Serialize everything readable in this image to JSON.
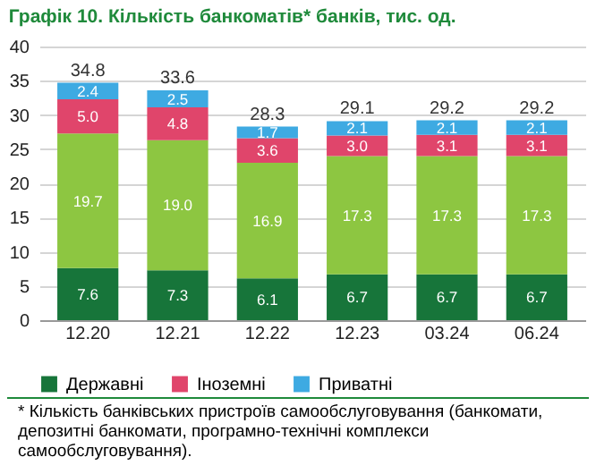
{
  "chart_data": {
    "type": "bar",
    "title": "Графік 10. Кількість банкоматів* банків, тис. од.",
    "categories": [
      "12.20",
      "12.21",
      "12.22",
      "12.23",
      "03.24",
      "06.24"
    ],
    "stacked": true,
    "series": [
      {
        "name": "Державні",
        "color": "#17753a",
        "values": [
          7.6,
          7.3,
          6.1,
          6.7,
          6.7,
          6.7
        ],
        "value_labels": [
          "7.6",
          "7.3",
          "6.1",
          "6.7",
          "6.7",
          "6.7"
        ]
      },
      {
        "color": "#8dc641",
        "values": [
          19.7,
          19.0,
          16.9,
          17.3,
          17.3,
          17.3
        ],
        "value_labels": [
          "19.7",
          "19.0",
          "16.9",
          "17.3",
          "17.3",
          "17.3"
        ]
      },
      {
        "name": "Іноземні",
        "color": "#e0456b",
        "values": [
          5.0,
          4.8,
          3.6,
          3.0,
          3.1,
          3.1
        ],
        "value_labels": [
          "5.0",
          "4.8",
          "3.6",
          "3.0",
          "3.1",
          "3.1"
        ]
      },
      {
        "name": "Приватні",
        "color": "#3eaae2",
        "values": [
          2.4,
          2.5,
          1.7,
          2.1,
          2.1,
          2.1
        ],
        "value_labels": [
          "2.4",
          "2.5",
          "1.7",
          "2.1",
          "2.1",
          "2.1"
        ]
      }
    ],
    "totals": [
      "34.8",
      "33.6",
      "28.3",
      "29.1",
      "29.2",
      "29.2"
    ],
    "ylim": [
      0,
      40
    ],
    "yticks": [
      0,
      5,
      10,
      15,
      20,
      25,
      30,
      35,
      40
    ],
    "grid": "y",
    "legend": "bottom",
    "annotations": [
      "* Кількість банківських пристроїв самообслуговування (банкомати, депозитні банкомати, програмно-технічні комплекси самообслуговування)."
    ]
  }
}
